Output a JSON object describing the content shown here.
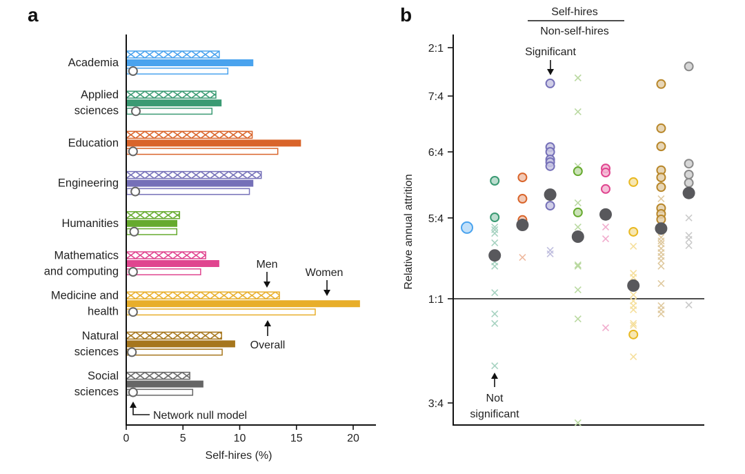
{
  "figure": {
    "panels": [
      "a",
      "b"
    ]
  },
  "chart_data": [
    {
      "panel": "a",
      "type": "bar",
      "orientation": "horizontal",
      "title": "",
      "xlabel": "Self-hires (%)",
      "ylabel": "",
      "xlim": [
        0,
        22
      ],
      "xticks": [
        0,
        5,
        10,
        15,
        20
      ],
      "xtick_labels": [
        "0",
        "5",
        "10",
        "15",
        "20"
      ],
      "grid": false,
      "categories": [
        {
          "label_lines": [
            "Academia"
          ],
          "color": "#4aa3ee"
        },
        {
          "label_lines": [
            "Applied",
            "sciences"
          ],
          "color": "#3a9a73"
        },
        {
          "label_lines": [
            "Education"
          ],
          "color": "#d9642a"
        },
        {
          "label_lines": [
            "Engineering"
          ],
          "color": "#7570b8"
        },
        {
          "label_lines": [
            "Humanities"
          ],
          "color": "#66aa2e"
        },
        {
          "label_lines": [
            "Mathematics",
            "and computing"
          ],
          "color": "#e0458f"
        },
        {
          "label_lines": [
            "Medicine and",
            "health"
          ],
          "color": "#e8ae2a"
        },
        {
          "label_lines": [
            "Natural",
            "sciences"
          ],
          "color": "#a6761d"
        },
        {
          "label_lines": [
            "Social",
            "sciences"
          ],
          "color": "#666666"
        }
      ],
      "series": [
        {
          "name": "Men",
          "style": "hatched",
          "values": [
            8.2,
            7.9,
            11.1,
            11.9,
            4.7,
            7.0,
            13.5,
            8.4,
            5.6
          ]
        },
        {
          "name": "Women",
          "style": "filled",
          "values": [
            11.2,
            8.4,
            15.4,
            11.2,
            4.5,
            8.2,
            20.6,
            9.6,
            6.8
          ]
        },
        {
          "name": "Overall",
          "style": "outline",
          "values": [
            9.0,
            7.6,
            13.4,
            10.9,
            4.5,
            6.6,
            16.7,
            8.5,
            5.9
          ]
        },
        {
          "name": "Network null model",
          "style": "circle-marker",
          "values": [
            0.6,
            0.85,
            0.6,
            0.8,
            0.7,
            0.6,
            0.6,
            0.5,
            0.6
          ]
        }
      ],
      "annotations": {
        "men": "Men",
        "women": "Women",
        "overall": "Overall",
        "null_model": "Network null model"
      }
    },
    {
      "panel": "b",
      "type": "scatter",
      "title_numerator": "Self-hires",
      "title_denominator": "Non-self-hires",
      "ylabel": "Relative annual attrition",
      "yscale": "log",
      "ylim": [
        0.7,
        2.15
      ],
      "yticks": [
        {
          "value": 0.75,
          "label": "3:4"
        },
        {
          "value": 1.0,
          "label": "1:1"
        },
        {
          "value": 1.25,
          "label": "5:4"
        },
        {
          "value": 1.5,
          "label": "6:4"
        },
        {
          "value": 1.75,
          "label": "7:4"
        },
        {
          "value": 2.0,
          "label": "2:1"
        }
      ],
      "reference_line": 1.0,
      "annotations": {
        "significant": "Significant",
        "not_significant_1": "Not",
        "not_significant_2": "significant"
      },
      "groups": [
        {
          "field": "Academia",
          "color": "#4aa3ee",
          "significant": [
            1.217
          ],
          "not_significant": [],
          "mean": null
        },
        {
          "field": "Applied sciences",
          "color": "#3a9a73",
          "significant": [
            1.385,
            1.252
          ],
          "not_significant": [
            1.219,
            1.21,
            1.198,
            1.167,
            1.107,
            1.094,
            1.017,
            0.959,
            0.934,
            0.831
          ],
          "mean": 1.127
        },
        {
          "field": "Education",
          "color": "#d9642a",
          "significant": [
            1.398,
            1.318,
            1.243,
            1.23
          ],
          "not_significant": [
            1.121
          ],
          "mean": 1.226
        },
        {
          "field": "Engineering",
          "color": "#7570b8",
          "significant": [
            1.812,
            1.52,
            1.5,
            1.469,
            1.458,
            1.442,
            1.293
          ],
          "not_significant": [
            1.143,
            1.132
          ],
          "mean": 1.333
        },
        {
          "field": "Humanities",
          "color": "#66aa2e",
          "significant": [
            1.422,
            1.269
          ],
          "not_significant": [
            1.84,
            1.676,
            1.442,
            1.303,
            1.219,
            1.098,
            1.094,
            1.025,
            0.946,
            0.71
          ],
          "mean": 1.187
        },
        {
          "field": "Mathematics and computing",
          "color": "#e0458f",
          "significant": [
            1.433,
            1.417,
            1.354
          ],
          "not_significant": [
            1.219,
            1.18,
            0.923
          ],
          "mean": 1.262
        },
        {
          "field": "Medicine and health",
          "color": "#e8b820",
          "significant": [
            1.38,
            1.203,
            0.906
          ],
          "not_significant": [
            1.156,
            1.073,
            1.061,
            1.011,
            0.994,
            0.981,
            0.97,
            0.934,
            0.929,
            0.852
          ],
          "mean": 1.037
        },
        {
          "field": "Natural sciences",
          "color": "#b8872a",
          "significant": [
            1.809,
            1.601,
            1.523,
            1.426,
            1.398,
            1.361,
            1.284,
            1.264,
            1.245
          ],
          "not_significant": [
            1.318,
            1.185,
            1.173,
            1.164,
            1.149,
            1.136,
            1.124,
            1.111,
            1.094,
            1.043,
            0.981,
            0.97,
            0.959
          ],
          "mean": 1.214
        },
        {
          "field": "Social sciences",
          "color": "#8a8a8a",
          "significant": [
            1.899,
            1.452,
            1.409,
            1.377
          ],
          "not_significant": [
            1.25,
            1.191,
            1.178,
            1.158,
            0.983
          ],
          "mean": 1.339
        }
      ],
      "mean_color": "#58585c"
    }
  ]
}
